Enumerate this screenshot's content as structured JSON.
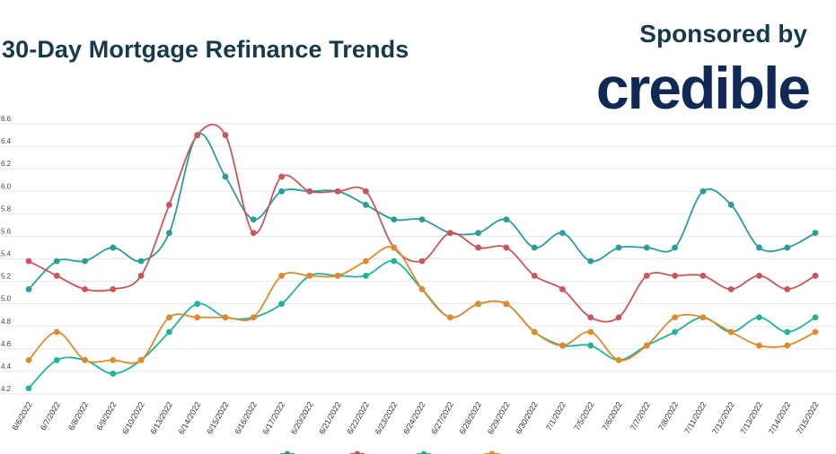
{
  "header": {
    "title": "30-Day Mortgage Refinance Trends",
    "sponsor_label": "Sponsored by",
    "brand": "credible"
  },
  "colors": {
    "teal": "#2a9d9a",
    "red": "#c9565a",
    "green": "#1fb39a",
    "orange": "#e08a2a",
    "title": "#16394c",
    "brand": "#0f2a55",
    "grid": "#e6e6e6"
  },
  "chart_data": {
    "type": "line",
    "title": "30-Day Mortgage Refinance Trends",
    "xlabel": "",
    "ylabel": "",
    "ylim": [
      4.2,
      6.6
    ],
    "yticks": [
      "4.2",
      "4.4",
      "4.6",
      "4.8",
      "5.0",
      "5.2",
      "5.4",
      "5.6",
      "5.8",
      "6.0",
      "6.2",
      "6.4",
      "6.6"
    ],
    "grid": true,
    "categories": [
      "6/6/2022",
      "6/7/2022",
      "6/8/2022",
      "6/9/2022",
      "6/10/2022",
      "6/13/2022",
      "6/14/2022",
      "6/15/2022",
      "6/16/2022",
      "6/17/2022",
      "6/20/2022",
      "6/21/2022",
      "6/22/2022",
      "6/23/2022",
      "6/24/2022",
      "6/27/2022",
      "6/28/2022",
      "6/29/2022",
      "6/30/2022",
      "7/1/2022",
      "7/5/2022",
      "7/6/2022",
      "7/7/2022",
      "7/8/2022",
      "7/11/2022",
      "7/12/2022",
      "7/13/2022",
      "7/14/2022",
      "7/15/2022"
    ],
    "series": [
      {
        "color": "#2a9d9a",
        "values": [
          5.13,
          5.38,
          5.38,
          5.5,
          5.38,
          5.63,
          6.5,
          6.13,
          5.75,
          6.0,
          6.0,
          6.0,
          5.88,
          5.75,
          5.75,
          5.63,
          5.63,
          5.75,
          5.5,
          5.63,
          5.38,
          5.5,
          5.5,
          5.5,
          6.0,
          5.88,
          5.5,
          5.5,
          5.63
        ]
      },
      {
        "color": "#c9565a",
        "values": [
          5.38,
          5.25,
          5.13,
          5.13,
          5.25,
          5.88,
          6.5,
          6.5,
          5.63,
          6.13,
          6.0,
          6.0,
          6.0,
          5.5,
          5.38,
          5.63,
          5.5,
          5.5,
          5.25,
          5.13,
          4.88,
          4.88,
          5.25,
          5.25,
          5.25,
          5.13,
          5.25,
          5.13,
          5.25
        ]
      },
      {
        "color": "#1fb39a",
        "values": [
          4.25,
          4.5,
          4.5,
          4.38,
          4.5,
          4.75,
          5.0,
          4.88,
          4.88,
          5.0,
          5.25,
          5.25,
          5.25,
          5.38,
          5.13,
          4.88,
          5.0,
          5.0,
          4.75,
          4.63,
          4.63,
          4.5,
          4.63,
          4.75,
          4.88,
          4.75,
          4.88,
          4.75,
          4.88
        ]
      },
      {
        "color": "#e08a2a",
        "values": [
          4.5,
          4.75,
          4.5,
          4.5,
          4.5,
          4.88,
          4.88,
          4.88,
          4.88,
          5.25,
          5.25,
          5.25,
          5.38,
          5.5,
          5.13,
          4.88,
          5.0,
          5.0,
          4.75,
          4.63,
          4.75,
          4.5,
          4.63,
          4.88,
          4.88,
          4.75,
          4.63,
          4.63,
          4.75
        ]
      }
    ]
  }
}
